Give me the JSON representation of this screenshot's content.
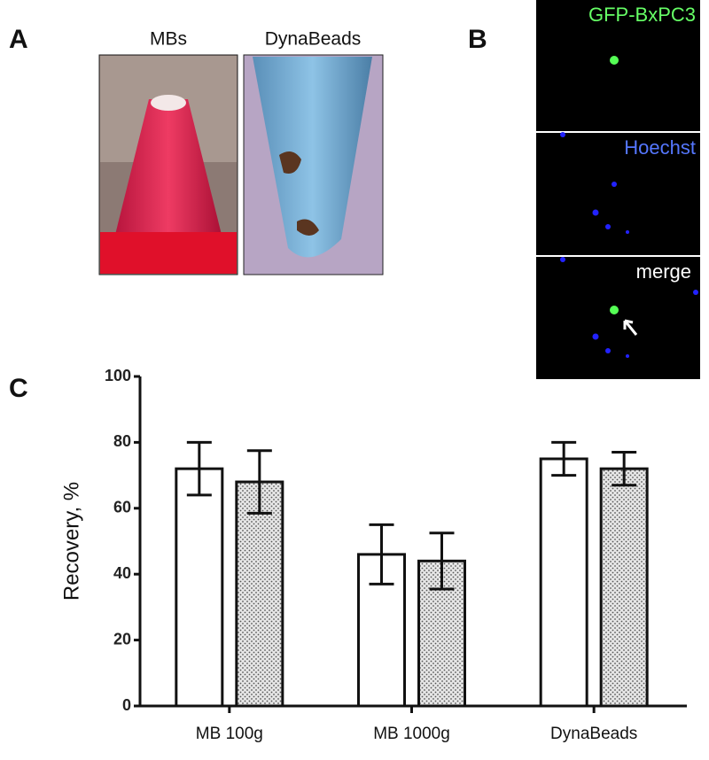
{
  "panels": {
    "a": {
      "label": "A",
      "left_caption": "MBs",
      "right_caption": "DynaBeads"
    },
    "b": {
      "label": "B",
      "top_caption": "GFP-BxPC3",
      "middle_caption": "Hoechst",
      "bottom_caption": "merge"
    },
    "c": {
      "label": "C"
    }
  },
  "chart_data": {
    "type": "bar",
    "ylabel": "Recovery, %",
    "categories": [
      "MB 100g",
      "MB 1000g",
      "DynaBeads"
    ],
    "series": [
      {
        "color": "#ffffff",
        "values": [
          72,
          46,
          75
        ],
        "errors": [
          8,
          9,
          5
        ]
      },
      {
        "color": "dotted",
        "values": [
          68,
          44,
          72
        ],
        "errors": [
          9.5,
          8.5,
          5
        ]
      }
    ],
    "ylim": [
      0,
      100
    ],
    "yticks": [
      0,
      20,
      40,
      60,
      80,
      100
    ]
  }
}
